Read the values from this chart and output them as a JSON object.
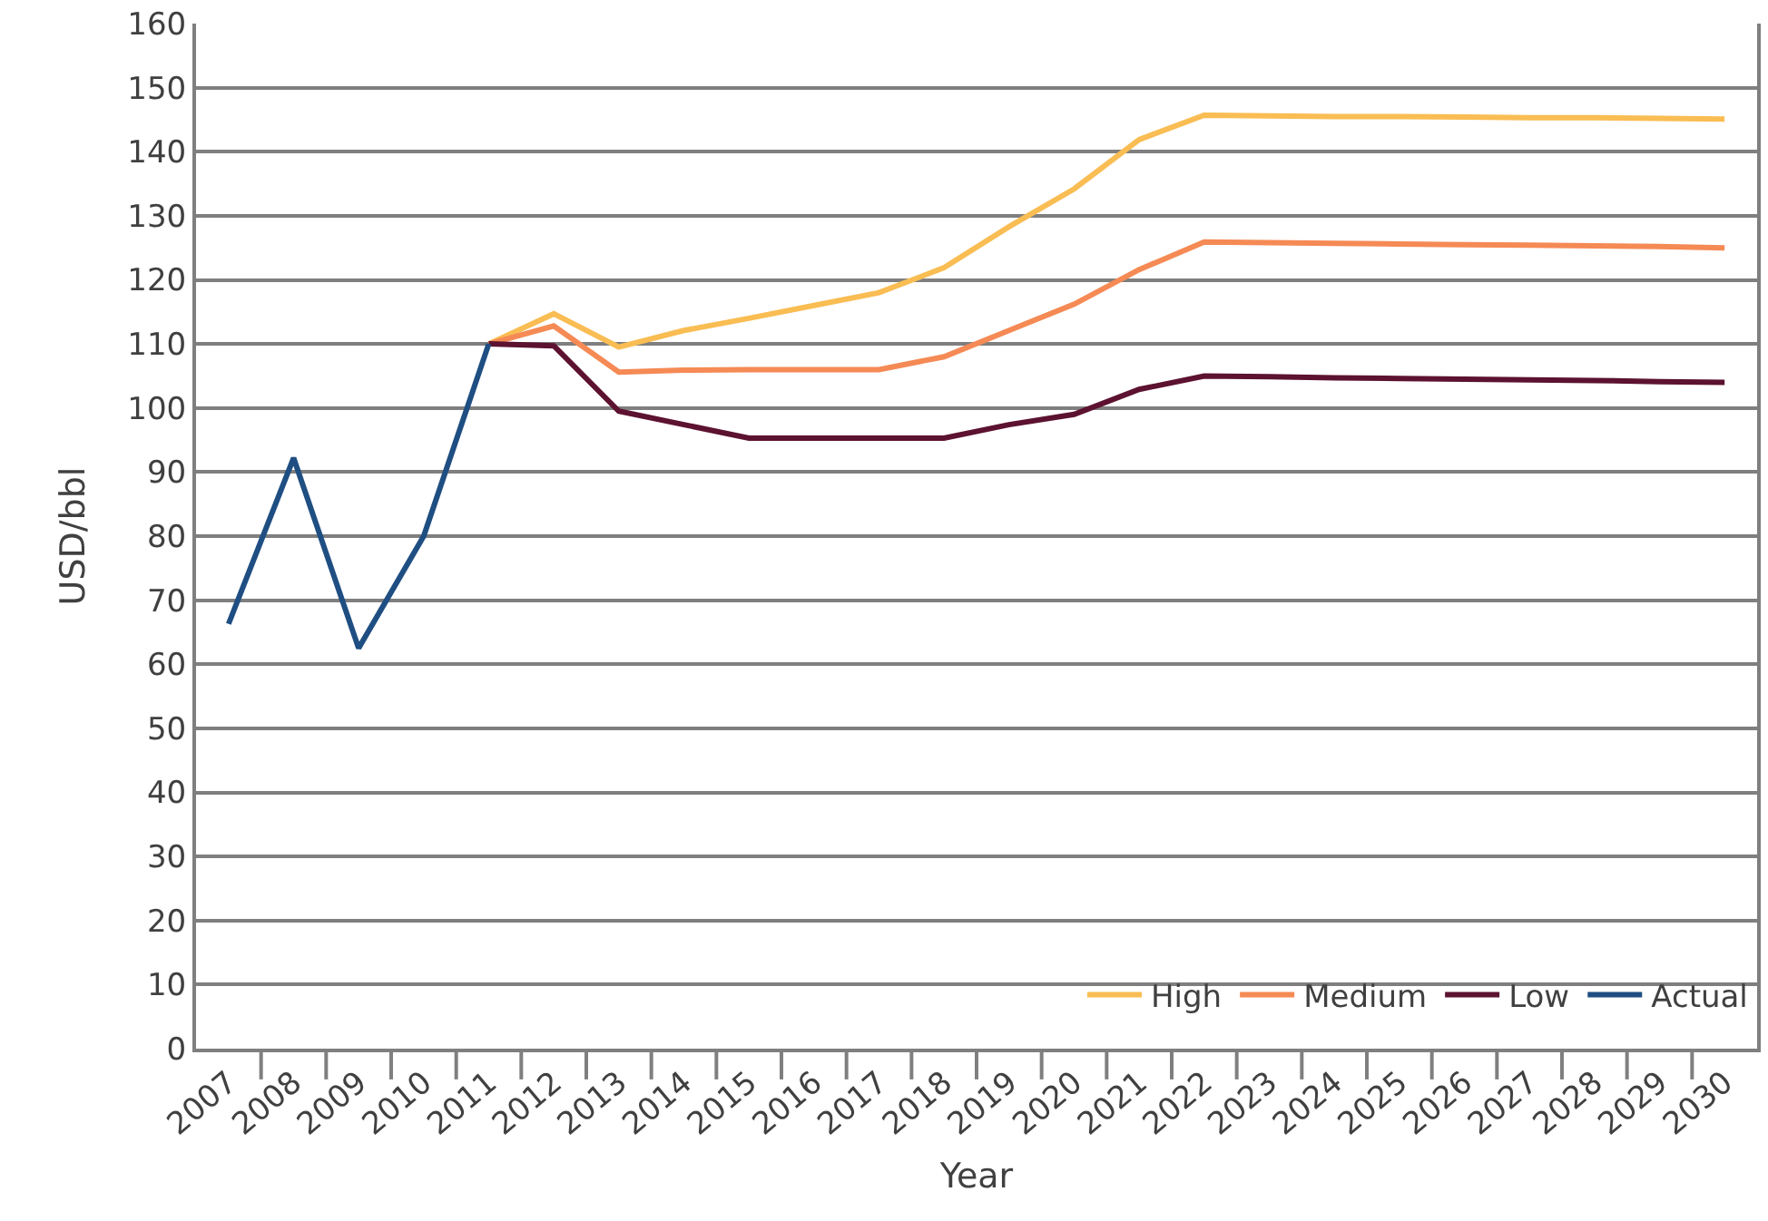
{
  "chart_data": {
    "type": "line",
    "xlabel": "Year",
    "ylabel": "USD/bbl",
    "categories": [
      "2007",
      "2008",
      "2009",
      "2010",
      "2011",
      "2012",
      "2013",
      "2014",
      "2015",
      "2016",
      "2017",
      "2018",
      "2019",
      "2020",
      "2021",
      "2022",
      "2023",
      "2024",
      "2025",
      "2026",
      "2027",
      "2028",
      "2029",
      "2030"
    ],
    "series": [
      {
        "name": "High",
        "color": "#f9bd53",
        "values": [
          null,
          null,
          null,
          null,
          110,
          114.7,
          109.5,
          112.1,
          114,
          116,
          118,
          121.9,
          128.3,
          134.2,
          141.9,
          145.7,
          145.6,
          145.5,
          145.5,
          145.4,
          145.3,
          145.3,
          145.2,
          145.1
        ]
      },
      {
        "name": "Medium",
        "color": "#f58a55",
        "values": [
          null,
          null,
          null,
          null,
          110,
          112.8,
          105.6,
          105.9,
          106,
          106,
          106,
          108,
          112.1,
          116.2,
          121.6,
          125.9,
          125.8,
          125.7,
          125.6,
          125.5,
          125.4,
          125.3,
          125.2,
          125
        ]
      },
      {
        "name": "Low",
        "color": "#5c1230",
        "values": [
          null,
          null,
          null,
          null,
          110,
          109.7,
          99.5,
          97.4,
          95.3,
          95.3,
          95.3,
          95.3,
          97.4,
          99,
          102.9,
          105,
          104.9,
          104.7,
          104.6,
          104.5,
          104.4,
          104.3,
          104.1,
          104
        ]
      },
      {
        "name": "Actual",
        "color": "#1f4e82",
        "values": [
          66.3,
          92.2,
          62.5,
          80,
          110,
          null,
          null,
          null,
          null,
          null,
          null,
          null,
          null,
          null,
          null,
          null,
          null,
          null,
          null,
          null,
          null,
          null,
          null,
          null
        ]
      }
    ],
    "ylim": [
      0,
      160
    ],
    "yticks": [
      0,
      10,
      20,
      30,
      40,
      50,
      60,
      70,
      80,
      90,
      100,
      110,
      120,
      130,
      140,
      150,
      160
    ],
    "grid": "y",
    "legend": "bottom right",
    "marker": "none",
    "line_style": "solid"
  }
}
